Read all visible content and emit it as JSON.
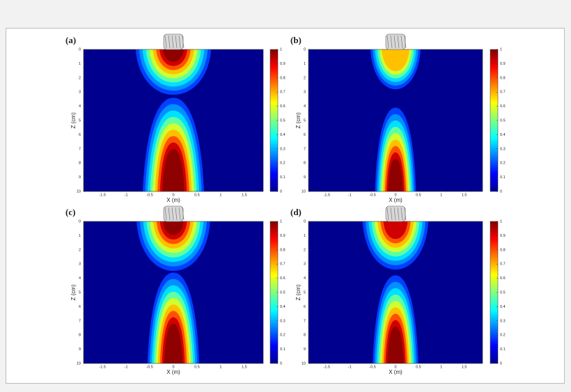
{
  "chart_data": [
    {
      "type": "heatmap",
      "panel_label": "(a)",
      "x_label": "X (m)",
      "y_label": "Z (cm)",
      "xlim": [
        -1.9,
        1.9
      ],
      "xticks": [
        -1.5,
        -1,
        -0.5,
        0,
        0.5,
        1,
        1.5
      ],
      "ylim": [
        0,
        10
      ],
      "yticks": [
        0,
        1,
        2,
        3,
        4,
        5,
        6,
        7,
        8,
        9,
        10
      ],
      "zlim": [
        0,
        1
      ],
      "zticks": [
        0,
        0.1,
        0.2,
        0.3,
        0.4,
        0.5,
        0.6,
        0.7,
        0.8,
        0.9,
        1
      ]
    },
    {
      "type": "heatmap",
      "panel_label": "(b)",
      "x_label": "X (m)",
      "y_label": "Z (cm)",
      "xlim": [
        -1.9,
        1.9
      ],
      "xticks": [
        -1.5,
        -1,
        -0.5,
        0,
        0.5,
        1,
        1.5
      ],
      "ylim": [
        0,
        10
      ],
      "yticks": [
        0,
        1,
        2,
        3,
        4,
        5,
        6,
        7,
        8,
        9,
        10
      ],
      "zlim": [
        0,
        1
      ],
      "zticks": [
        0,
        0.1,
        0.2,
        0.3,
        0.4,
        0.5,
        0.6,
        0.7,
        0.8,
        0.9,
        1
      ]
    },
    {
      "type": "heatmap",
      "panel_label": "(c)",
      "x_label": "X (m)",
      "y_label": "Z (cm)",
      "xlim": [
        -1.9,
        1.9
      ],
      "xticks": [
        -1.5,
        -1,
        -0.5,
        0,
        0.5,
        1,
        1.5
      ],
      "ylim": [
        0,
        10
      ],
      "yticks": [
        0,
        1,
        2,
        3,
        4,
        5,
        6,
        7,
        8,
        9,
        10
      ],
      "zlim": [
        0,
        1
      ],
      "zticks": [
        0,
        0.1,
        0.2,
        0.3,
        0.4,
        0.5,
        0.6,
        0.7,
        0.8,
        0.9,
        1
      ]
    },
    {
      "type": "heatmap",
      "panel_label": "(d)",
      "x_label": "X (m)",
      "y_label": "Z (cm)",
      "xlim": [
        -1.9,
        1.9
      ],
      "xticks": [
        -1.5,
        -1,
        -0.5,
        0,
        0.5,
        1,
        1.5
      ],
      "ylim": [
        0,
        10
      ],
      "yticks": [
        0,
        1,
        2,
        3,
        4,
        5,
        6,
        7,
        8,
        9,
        10
      ],
      "zlim": [
        0,
        1
      ],
      "zticks": [
        0,
        0.1,
        0.2,
        0.3,
        0.4,
        0.5,
        0.6,
        0.7,
        0.8,
        0.9,
        1
      ]
    }
  ]
}
